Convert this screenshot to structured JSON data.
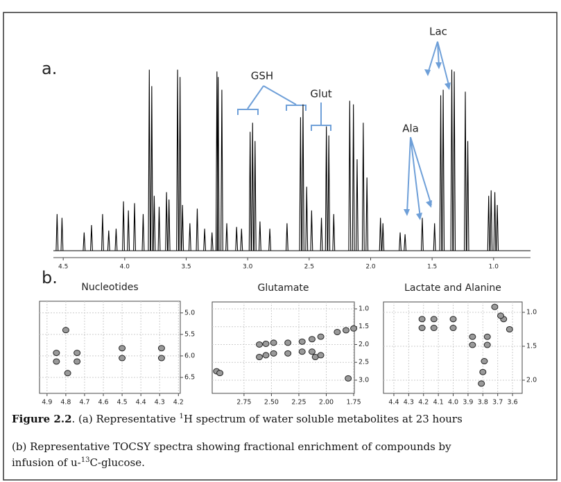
{
  "panel_labels": [
    "a.",
    "b."
  ],
  "chart_data": [
    {
      "type": "spectrum",
      "color": "#000",
      "annotations": [
        "GSH",
        "Glut",
        "Lac",
        "Ala"
      ],
      "x": [
        4.55,
        4.51,
        4.33,
        4.27,
        4.18,
        4.13,
        4.07,
        4.01,
        3.97,
        3.92,
        3.85,
        3.8,
        3.78,
        3.76,
        3.72,
        3.66,
        3.64,
        3.57,
        3.55,
        3.53,
        3.47,
        3.41,
        3.35,
        3.29,
        3.25,
        3.24,
        3.21,
        3.17,
        3.09,
        3.05,
        2.98,
        2.96,
        2.94,
        2.9,
        2.82,
        2.68,
        2.57,
        2.55,
        2.52,
        2.48,
        2.4,
        2.36,
        2.34,
        2.3,
        2.17,
        2.14,
        2.11,
        2.06,
        2.03,
        1.92,
        1.9,
        1.76,
        1.72,
        1.58,
        1.48,
        1.43,
        1.41,
        1.34,
        1.32,
        1.23,
        1.21,
        1.04,
        1.02,
        0.99,
        0.97
      ],
      "values": [
        20,
        18,
        10,
        14,
        20,
        11,
        12,
        27,
        22,
        26,
        20,
        99,
        90,
        30,
        24,
        32,
        28,
        99,
        95,
        25,
        15,
        23,
        12,
        10,
        98,
        95,
        88,
        15,
        13,
        12,
        65,
        70,
        60,
        16,
        12,
        15,
        73,
        80,
        35,
        22,
        18,
        68,
        63,
        20,
        82,
        80,
        50,
        70,
        40,
        18,
        15,
        10,
        9,
        18,
        15,
        85,
        88,
        99,
        98,
        87,
        60,
        30,
        33,
        32,
        25
      ],
      "xlim": [
        4.58,
        0.7
      ],
      "x_inverted": true,
      "ylim": [
        0,
        100
      ],
      "xticks": [
        4.5,
        {
          "value": 4,
          "label": "4.0"
        },
        3.5,
        {
          "value": 3,
          "label": "3.0"
        },
        2.5,
        {
          "value": 2,
          "label": "2.0"
        },
        1.5,
        {
          "value": 1,
          "label": "1.0"
        }
      ]
    },
    {
      "type": "contour",
      "title": "Nucleotides",
      "color": "#9a9a9a",
      "grid": true,
      "x_inverted": true,
      "y_inverted": true,
      "x": [
        4.85,
        4.74,
        4.85,
        4.74,
        4.5,
        4.29,
        4.5,
        4.29,
        4.8,
        4.79
      ],
      "y": [
        5.93,
        5.93,
        6.13,
        6.13,
        5.82,
        5.82,
        6.05,
        6.05,
        5.4,
        6.4
      ],
      "xlim": [
        4.94,
        4.19
      ],
      "ylim": [
        4.73,
        6.87
      ],
      "xticks": [
        4.9,
        4.8,
        4.7,
        4.6,
        4.5,
        4.4,
        4.3,
        4.2
      ],
      "yticks": [
        {
          "value": 5,
          "label": "5.0"
        },
        5.5,
        {
          "value": 6,
          "label": "6.0"
        },
        6.5
      ]
    },
    {
      "type": "contour",
      "title": "Glutamate",
      "color": "#9a9a9a",
      "grid": true,
      "x_inverted": true,
      "y_inverted": true,
      "x": [
        2.61,
        2.55,
        2.48,
        2.35,
        2.22,
        2.13,
        2.05,
        1.9,
        1.82,
        1.75,
        2.61,
        2.55,
        2.48,
        2.35,
        2.22,
        2.13,
        2.1,
        2.05,
        3.0,
        2.97,
        1.8
      ],
      "y": [
        2.0,
        1.98,
        1.95,
        1.95,
        1.92,
        1.85,
        1.78,
        1.65,
        1.6,
        1.55,
        2.35,
        2.3,
        2.25,
        2.25,
        2.2,
        2.2,
        2.35,
        2.3,
        2.75,
        2.8,
        2.95
      ],
      "xlim": [
        3.04,
        1.744
      ],
      "ylim": [
        0.806,
        3.37
      ],
      "xticks": [
        2.75,
        {
          "value": 2.5,
          "label": "2.50"
        },
        2.25,
        {
          "value": 2,
          "label": "2.00"
        },
        1.75
      ],
      "yticks": [
        {
          "value": 1,
          "label": "1.0"
        },
        1.5,
        {
          "value": 2,
          "label": "2.0"
        },
        2.5,
        {
          "value": 3,
          "label": "3.0"
        }
      ]
    },
    {
      "type": "contour",
      "title": "Lactate and Alanine",
      "color": "#9a9a9a",
      "grid": true,
      "x_inverted": true,
      "y_inverted": true,
      "x": [
        4.21,
        4.13,
        4.0,
        4.21,
        4.13,
        4.0,
        3.87,
        3.77,
        3.87,
        3.77,
        3.79,
        3.8,
        3.81,
        3.66,
        3.62,
        3.72,
        3.68
      ],
      "y": [
        1.1,
        1.1,
        1.1,
        1.23,
        1.23,
        1.23,
        1.36,
        1.36,
        1.48,
        1.48,
        1.72,
        1.88,
        2.05,
        1.1,
        1.25,
        0.92,
        1.05
      ],
      "xlim": [
        4.47,
        3.535
      ],
      "ylim": [
        0.847,
        2.194
      ],
      "xticks": [
        4.4,
        4.3,
        4.2,
        4.1,
        {
          "value": 4,
          "label": "4.0"
        },
        3.9,
        3.8,
        3.7,
        3.6
      ],
      "yticks": [
        {
          "value": 1,
          "label": "1.0"
        },
        1.5,
        {
          "value": 2,
          "label": "2.0"
        }
      ]
    }
  ],
  "caption": {
    "fig": "Figure 2.2",
    "line1": [
      ". (a) Representative ",
      "1",
      "H spectrum of water soluble metabolites at 23 hours"
    ],
    "line2": "(b) Representative TOCSY spectra showing fractional enrichment of compounds by",
    "line3": [
      "infusion of u-",
      "13",
      "C-glucose."
    ]
  }
}
